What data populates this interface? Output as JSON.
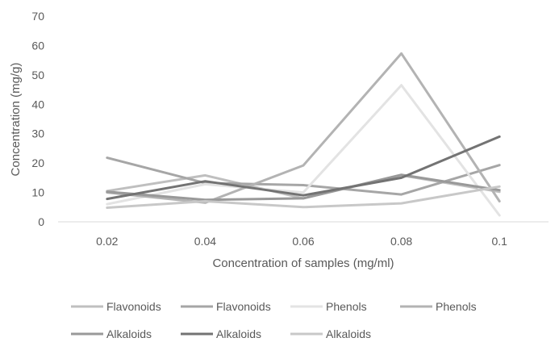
{
  "chart_data": {
    "type": "line",
    "title": "",
    "xlabel": "Concentration of samples (mg/ml)",
    "ylabel": "Concentration (mg/g)",
    "categories": [
      "0.02",
      "0.04",
      "0.06",
      "0.08",
      "0.1"
    ],
    "ylim": [
      0,
      70
    ],
    "yticks": [
      "0",
      "10",
      "20",
      "30",
      "40",
      "50",
      "60",
      "70"
    ],
    "grid": false,
    "legend_position": "bottom",
    "series": [
      {
        "name": "Flavonoids",
        "values": [
          10.5,
          15.8,
          8.0,
          15.8,
          10.2
        ],
        "color": "#bfbfbf"
      },
      {
        "name": "Flavonoids",
        "values": [
          21.8,
          13.2,
          12.5,
          9.3,
          19.3
        ],
        "color": "#a6a6a6"
      },
      {
        "name": "Phenols",
        "values": [
          6.0,
          12.8,
          10.0,
          46.5,
          2.2
        ],
        "color": "#e3e3e3"
      },
      {
        "name": "Phenols",
        "values": [
          10.0,
          6.5,
          19.2,
          57.3,
          7.0
        ],
        "color": "#b3b3b3"
      },
      {
        "name": "Alkaloids",
        "values": [
          10.2,
          7.5,
          8.0,
          16.0,
          10.8
        ],
        "color": "#999999"
      },
      {
        "name": "Alkaloids",
        "values": [
          7.8,
          13.8,
          9.0,
          15.0,
          29.0
        ],
        "color": "#737373"
      },
      {
        "name": "Alkaloids",
        "values": [
          4.8,
          7.0,
          5.0,
          6.3,
          12.0
        ],
        "color": "#c8c8c8"
      }
    ]
  }
}
